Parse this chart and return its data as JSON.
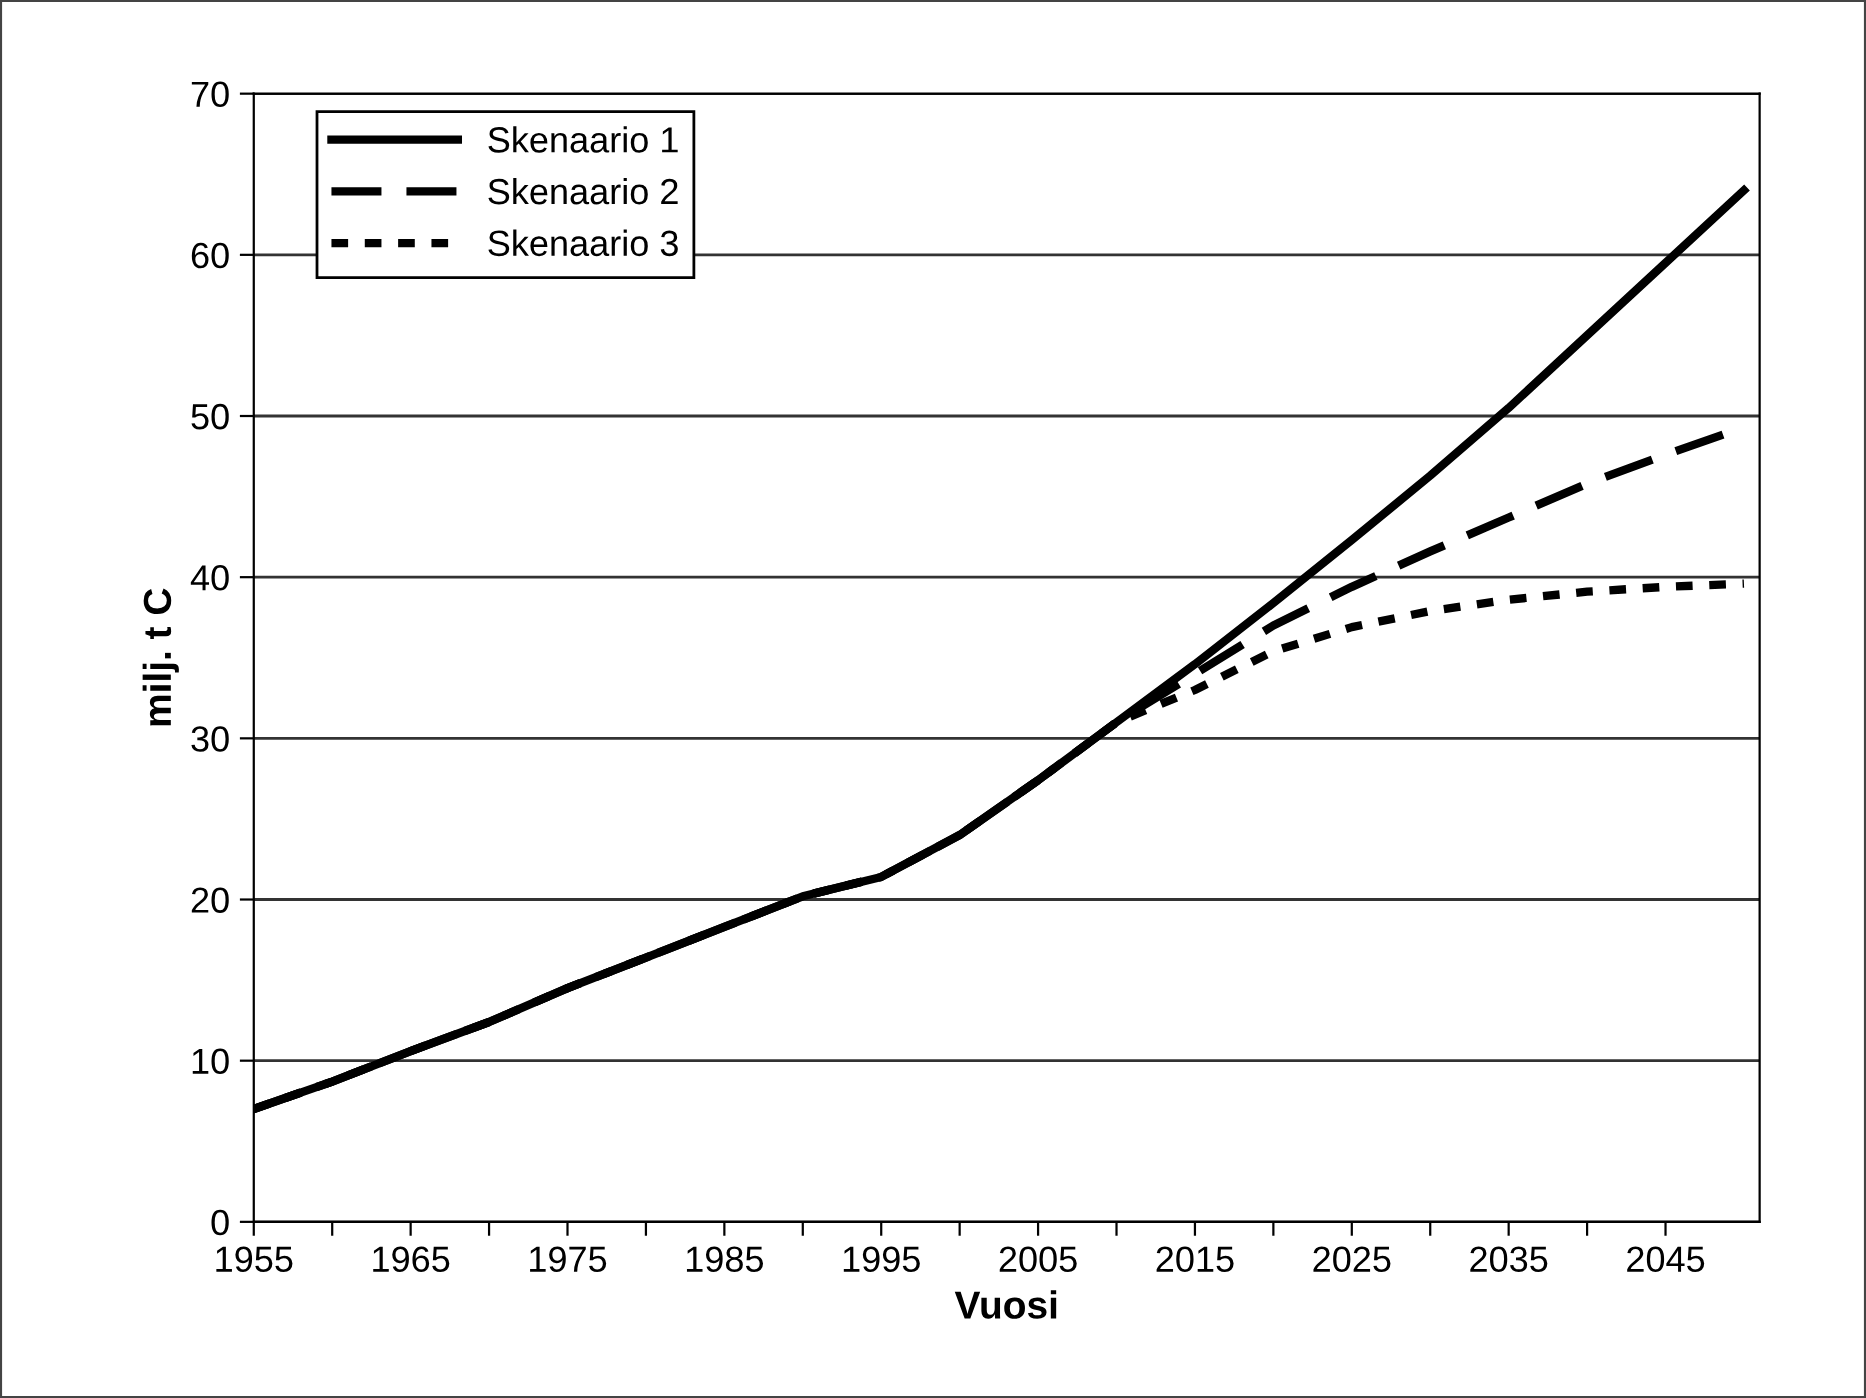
{
  "chart_data": {
    "type": "line",
    "xlabel": "Vuosi",
    "ylabel": "milj. t C",
    "x": [
      1955,
      1960,
      1965,
      1970,
      1975,
      1980,
      1985,
      1990,
      1995,
      2000,
      2005,
      2010,
      2015,
      2020,
      2025,
      2030,
      2035,
      2040,
      2045,
      2050
    ],
    "series": [
      {
        "name": "Skenaario 1",
        "color": "#000000",
        "line_style": "solid",
        "values": [
          7.0,
          8.7,
          10.6,
          12.4,
          14.5,
          16.4,
          18.3,
          20.2,
          21.4,
          24.0,
          27.4,
          31.0,
          34.6,
          38.4,
          42.3,
          46.3,
          50.5,
          55.0,
          59.5,
          64.0
        ]
      },
      {
        "name": "Skenaario 2",
        "color": "#000000",
        "line_style": "dashed",
        "values": [
          7.0,
          8.7,
          10.6,
          12.4,
          14.5,
          16.4,
          18.3,
          20.2,
          21.4,
          24.0,
          27.4,
          31.0,
          34.0,
          37.0,
          39.4,
          41.6,
          43.7,
          45.8,
          47.6,
          49.3
        ]
      },
      {
        "name": "Skenaario 3",
        "color": "#000000",
        "line_style": "dotted",
        "values": [
          7.0,
          8.7,
          10.6,
          12.4,
          14.5,
          16.4,
          18.3,
          20.2,
          21.4,
          24.0,
          27.4,
          31.0,
          33.0,
          35.4,
          36.9,
          37.9,
          38.6,
          39.1,
          39.4,
          39.6
        ]
      }
    ],
    "xlim": [
      1955,
      2051
    ],
    "xticks": [
      1955,
      {
        "value": 1960,
        "label": null
      },
      1965,
      {
        "value": 1970,
        "label": null
      },
      1975,
      {
        "value": 1980,
        "label": null
      },
      1985,
      {
        "value": 1990,
        "label": null
      },
      1995,
      {
        "value": 2000,
        "label": null
      },
      2005,
      {
        "value": 2010,
        "label": null
      },
      2015,
      {
        "value": 2020,
        "label": null
      },
      2025,
      {
        "value": 2030,
        "label": null
      },
      2035,
      {
        "value": 2040,
        "label": null
      },
      2045
    ],
    "ylim": [
      0,
      70
    ],
    "yticks": [
      0,
      10,
      20,
      30,
      40,
      50,
      60,
      70
    ],
    "grid": "y",
    "legend": "top left",
    "marker": "none"
  }
}
